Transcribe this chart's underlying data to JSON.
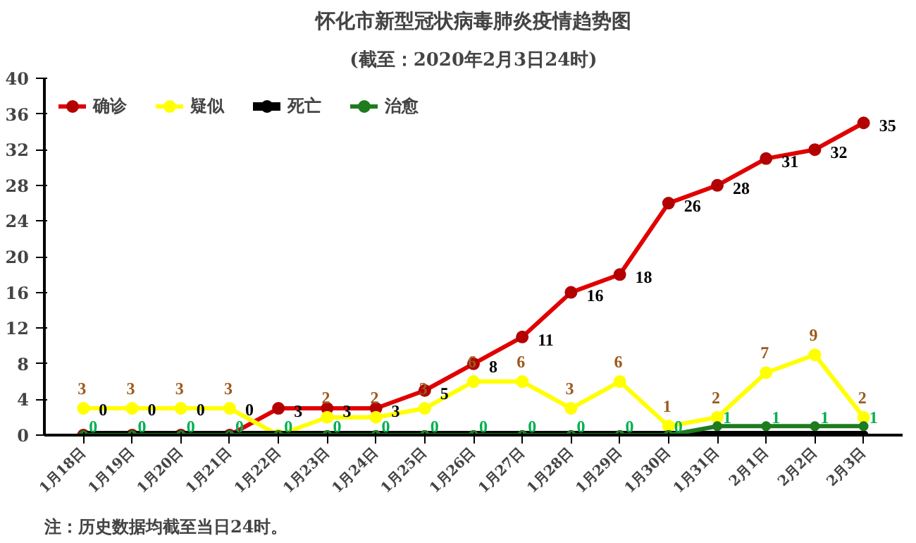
{
  "chart_data": {
    "type": "line",
    "title": "怀化市新型冠状病毒肺炎疫情趋势图",
    "subtitle": "(截至：2020年2月3日24时)",
    "categories": [
      "1月18日",
      "1月19日",
      "1月20日",
      "1月21日",
      "1月22日",
      "1月23日",
      "1月24日",
      "1月25日",
      "1月26日",
      "1月27日",
      "1月28日",
      "1月29日",
      "1月30日",
      "1月31日",
      "2月1日",
      "2月2日",
      "2月3日"
    ],
    "series": [
      {
        "name": "确诊",
        "color": "#e00000",
        "values": [
          0,
          0,
          0,
          0,
          3,
          3,
          3,
          5,
          8,
          11,
          16,
          18,
          26,
          28,
          31,
          32,
          35
        ],
        "value_labels": [
          "0",
          "0",
          "0",
          "0",
          "3",
          "3",
          "3",
          "5",
          "8",
          "11",
          "16",
          "18",
          "26",
          "28",
          "31",
          "32",
          "35"
        ]
      },
      {
        "name": "疑似",
        "color": "#ffff00",
        "values": [
          3,
          3,
          3,
          3,
          0,
          2,
          2,
          3,
          6,
          6,
          3,
          6,
          1,
          2,
          7,
          9,
          2
        ],
        "value_labels": [
          "3",
          "3",
          "3",
          "3",
          null,
          "2",
          "2",
          "3",
          "6",
          "6",
          "3",
          "6",
          "1",
          "2",
          "7",
          "9",
          "2"
        ]
      },
      {
        "name": "死亡",
        "color": "#000000",
        "values": [
          0,
          0,
          0,
          0,
          0,
          0,
          0,
          0,
          0,
          0,
          0,
          0,
          0,
          0,
          0,
          0,
          0
        ]
      },
      {
        "name": "治愈",
        "color": "#1e7b1e",
        "values": [
          0,
          0,
          0,
          0,
          0,
          0,
          0,
          0,
          0,
          0,
          0,
          0,
          0,
          1,
          1,
          1,
          1
        ],
        "value_labels": [
          "0",
          "0",
          "0",
          "0",
          "0",
          "0",
          "0",
          "0",
          "0",
          "0",
          "0",
          "0",
          "0",
          "1",
          "1",
          "1",
          "1"
        ]
      }
    ],
    "ylim": [
      0,
      40
    ],
    "yticks": [
      0,
      4,
      8,
      12,
      16,
      20,
      24,
      28,
      32,
      36,
      40
    ],
    "legend": "top left",
    "marker": "circle",
    "grid": false,
    "annotations": [
      "注：历史数据均截至当日24时。"
    ]
  }
}
